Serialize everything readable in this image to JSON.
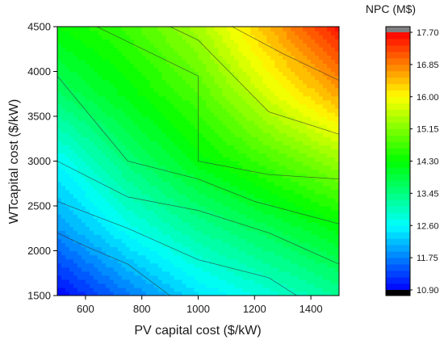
{
  "chart_data": {
    "type": "heatmap",
    "subtype": "filled-contour",
    "xlabel": "PV capital cost ($/kW)",
    "ylabel": "WTcapital cost ($/kW)",
    "xlim": [
      500,
      1500
    ],
    "ylim": [
      1500,
      4500
    ],
    "x_ticks": [
      600,
      800,
      1000,
      1200,
      1400
    ],
    "x_tick_labels": [
      "600",
      "800",
      "1000",
      "1200",
      "1400"
    ],
    "y_ticks": [
      1500,
      2000,
      2500,
      3000,
      3500,
      4000,
      4500
    ],
    "y_tick_labels": [
      "1500",
      "2000",
      "2500",
      "3000",
      "3500",
      "4000",
      "4500"
    ],
    "grid": false,
    "colorbar": {
      "title": "NPC (M$)",
      "min": 10.9,
      "max": 17.7,
      "ticks": [
        10.9,
        11.75,
        12.6,
        13.45,
        14.3,
        15.15,
        16.0,
        16.85,
        17.7
      ],
      "tick_labels": [
        "10.90",
        "11.75",
        "12.60",
        "13.45",
        "14.30",
        "15.15",
        "16.00",
        "16.85",
        "17.70"
      ],
      "under_color": "#000000",
      "over_color": "#808080",
      "colormap": [
        {
          "v": 10.9,
          "color": "#0000ff"
        },
        {
          "v": 12.6,
          "color": "#00ffff"
        },
        {
          "v": 14.3,
          "color": "#00ff00"
        },
        {
          "v": 16.0,
          "color": "#ffff00"
        },
        {
          "v": 17.7,
          "color": "#ff0000"
        }
      ]
    },
    "npc_grid": {
      "x": [
        500,
        750,
        1000,
        1250,
        1500
      ],
      "y": [
        1500,
        2250,
        3000,
        3750,
        4500
      ],
      "z": [
        [
          10.9,
          11.7,
          12.4,
          12.85,
          13.3
        ],
        [
          11.9,
          12.7,
          13.3,
          13.75,
          14.2
        ],
        [
          12.6,
          13.5,
          14.2,
          14.75,
          15.3
        ],
        [
          13.6,
          14.2,
          14.8,
          15.75,
          16.6
        ],
        [
          14.3,
          14.7,
          15.4,
          16.5,
          17.6
        ]
      ]
    },
    "contour_lines": [
      {
        "level": 11.75,
        "points": [
          [
            500,
            2200
          ],
          [
            600,
            2050
          ],
          [
            750,
            1850
          ],
          [
            900,
            1500
          ]
        ]
      },
      {
        "level": 12.6,
        "points": [
          [
            500,
            2550
          ],
          [
            750,
            2250
          ],
          [
            1000,
            1900
          ],
          [
            1250,
            1700
          ],
          [
            1350,
            1500
          ]
        ]
      },
      {
        "level": 13.45,
        "points": [
          [
            500,
            3000
          ],
          [
            750,
            2600
          ],
          [
            1000,
            2450
          ],
          [
            1250,
            2200
          ],
          [
            1500,
            1850
          ]
        ]
      },
      {
        "level": 14.3,
        "points": [
          [
            500,
            3950
          ],
          [
            750,
            3000
          ],
          [
            1000,
            2800
          ],
          [
            1200,
            2550
          ],
          [
            1500,
            2300
          ]
        ]
      },
      {
        "level": 15.15,
        "points": [
          [
            640,
            4500
          ],
          [
            1000,
            3950
          ],
          [
            1000,
            3000
          ],
          [
            1250,
            2850
          ],
          [
            1500,
            2800
          ]
        ]
      },
      {
        "level": 16.0,
        "points": [
          [
            900,
            4500
          ],
          [
            1000,
            4350
          ],
          [
            1250,
            3550
          ],
          [
            1500,
            3300
          ]
        ]
      },
      {
        "level": 16.85,
        "points": [
          [
            1120,
            4500
          ],
          [
            1300,
            4200
          ],
          [
            1500,
            3900
          ]
        ]
      }
    ]
  }
}
